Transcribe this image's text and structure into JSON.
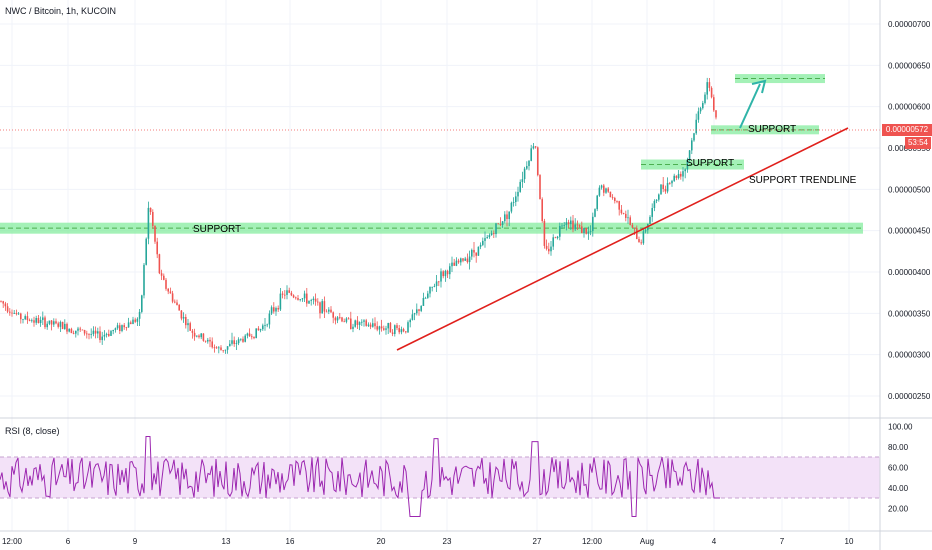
{
  "chart_title": "NWC / Bitcoin, 1h, KUCOIN",
  "rsi_title": "RSI (8, close)",
  "colors": {
    "up": "#26a69a",
    "down": "#ef5350",
    "trend": "#e0201c",
    "zone": "#86ec9f",
    "zone_dash": "#4caf50",
    "arrow": "#2fb4a8",
    "rsi_line": "#9c27b0",
    "rsi_band": "#f3e2f8",
    "last_price_line": "#ef5350",
    "badge": "#ef5350"
  },
  "price_axis": {
    "ticks": [
      "0.00000700",
      "0.00000650",
      "0.00000600",
      "0.00000550",
      "0.00000500",
      "0.00000450",
      "0.00000400",
      "0.00000350",
      "0.00000300",
      "0.00000250"
    ]
  },
  "last_price": {
    "value": "0.00000572",
    "countdown": "53:54"
  },
  "rsi_axis": {
    "ticks": [
      "100.00",
      "80.00",
      "60.00",
      "40.00",
      "20.00"
    ]
  },
  "time_axis": {
    "ticks": [
      "12:00",
      "6",
      "9",
      "13",
      "16",
      "20",
      "23",
      "27",
      "12:00",
      "Aug",
      "4",
      "7",
      "10"
    ]
  },
  "annotations": {
    "support_left": "SUPPORT",
    "support_mid": "SUPPORT",
    "support_top": "SUPPORT",
    "trendline": "SUPPORT TRENDLINE"
  },
  "chart_data": {
    "type": "candlestick",
    "title": "NWC / Bitcoin, 1h, KUCOIN",
    "y_range": [
      2.25e-06,
      7.2e-06
    ],
    "series": [
      {
        "name": "NWC / Bitcoin",
        "close_path": [
          {
            "x": 0,
            "y": 3.65e-06
          },
          {
            "x": 20,
            "y": 3.45e-06
          },
          {
            "x": 60,
            "y": 3.35e-06
          },
          {
            "x": 100,
            "y": 3.22e-06
          },
          {
            "x": 140,
            "y": 3.45e-06
          },
          {
            "x": 149,
            "y": 4.85e-06
          },
          {
            "x": 160,
            "y": 3.95e-06
          },
          {
            "x": 190,
            "y": 3.3e-06
          },
          {
            "x": 220,
            "y": 3.05e-06
          },
          {
            "x": 260,
            "y": 3.3e-06
          },
          {
            "x": 285,
            "y": 3.75e-06
          },
          {
            "x": 310,
            "y": 3.65e-06
          },
          {
            "x": 350,
            "y": 3.38e-06
          },
          {
            "x": 405,
            "y": 3.3e-06
          },
          {
            "x": 440,
            "y": 3.95e-06
          },
          {
            "x": 480,
            "y": 4.3e-06
          },
          {
            "x": 510,
            "y": 4.75e-06
          },
          {
            "x": 535,
            "y": 5.6e-06
          },
          {
            "x": 545,
            "y": 4.2e-06
          },
          {
            "x": 565,
            "y": 4.65e-06
          },
          {
            "x": 590,
            "y": 4.45e-06
          },
          {
            "x": 600,
            "y": 5.05e-06
          },
          {
            "x": 620,
            "y": 4.8e-06
          },
          {
            "x": 640,
            "y": 4.35e-06
          },
          {
            "x": 660,
            "y": 5e-06
          },
          {
            "x": 685,
            "y": 5.25e-06
          },
          {
            "x": 700,
            "y": 6e-06
          },
          {
            "x": 709,
            "y": 6.28e-06
          },
          {
            "x": 718,
            "y": 5.72e-06
          }
        ]
      },
      {
        "name": "RSI (8, close)",
        "values_range": [
          10,
          95
        ]
      }
    ],
    "zones": [
      {
        "label": "SUPPORT",
        "price": 4.53e-06
      },
      {
        "label": "SUPPORT",
        "price": 5.3e-06
      },
      {
        "label": "SUPPORT",
        "price": 5.72e-06
      },
      {
        "label": "",
        "price": 6.34e-06
      }
    ],
    "trendline": {
      "label": "SUPPORT TRENDLINE",
      "from": 3.07e-06,
      "to": 5.74e-06
    },
    "rsi_levels": [
      70,
      30
    ]
  }
}
